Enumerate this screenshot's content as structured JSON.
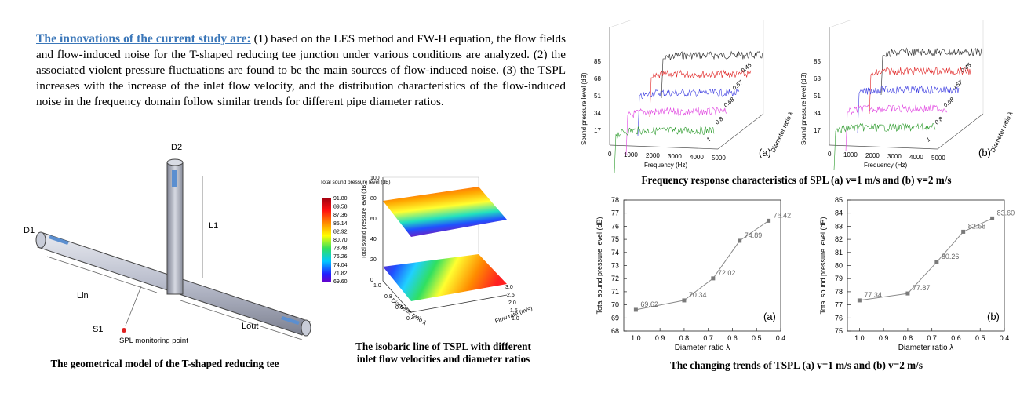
{
  "intro": {
    "lead": "The innovations of the current study are:",
    "body": " (1) based on the LES method and FW-H equation, the flow fields and flow-induced noise for the T-shaped reducing tee junction under various conditions are analyzed. (2) the associated violent pressure fluctuations are found to be the main sources of flow-induced noise. (3) the TSPL increases with the increase of the inlet flow velocity, and the distribution characteristics of the flow-induced noise in the frequency domain follow similar trends for different pipe diameter ratios."
  },
  "geometry": {
    "caption": "The geometrical model of the T-shaped reducing tee",
    "labels": {
      "d2": "D2",
      "d1": "D1",
      "l1": "L1",
      "lin": "Lin",
      "lout": "Lout",
      "s1": "S1",
      "monitor": "SPL monitoring point"
    }
  },
  "surface": {
    "caption": "The isobaric line of TSPL with different inlet flow velocities and diameter ratios",
    "colorbar_title": "Total sound pressure level  (dB)",
    "colorbar_values": [
      "91.80",
      "89.58",
      "87.36",
      "85.14",
      "82.92",
      "80.70",
      "78.48",
      "76.26",
      "74.04",
      "71.82",
      "69.60"
    ],
    "zlabel": "Total sound pressure level  (dB)",
    "zticks": [
      "100",
      "80",
      "60",
      "40",
      "20",
      "0"
    ],
    "xlabel": "Diameter ratio λ",
    "xticks": [
      "0.4",
      "0.6",
      "0.8",
      "1.0"
    ],
    "ylabel": "Flow rate (m/s)",
    "yticks": [
      "1.0",
      "1.5",
      "2.0",
      "2.5",
      "3.0"
    ]
  },
  "spectrum": {
    "caption": "Frequency response characteristics of SPL (a) v=1 m/s and (b) v=2 m/s",
    "panels": [
      {
        "tag": "(a)",
        "xlabel": "Frequency  (Hz)",
        "ylabel": "Sound pressure level  (dB)",
        "zlabel": "Diameter ratio λ",
        "xticks": [
          "0",
          "1000",
          "2000",
          "3000",
          "4000",
          "5000"
        ],
        "yticks": [
          "85",
          "68",
          "51",
          "34",
          "17"
        ],
        "ratios": [
          "0.45",
          "0.57",
          "0.68",
          "0.8",
          "1"
        ]
      },
      {
        "tag": "(b)",
        "xlabel": "Frequency  (Hz)",
        "ylabel": "Sound pressure level  (dB)",
        "zlabel": "Diameter ratio λ",
        "xticks": [
          "0",
          "1000",
          "2000",
          "3000",
          "4000",
          "5000"
        ],
        "yticks": [
          "85",
          "68",
          "51",
          "34",
          "17"
        ],
        "ratios": [
          "0.45",
          "0.57",
          "0.68",
          "0.8",
          "1"
        ]
      }
    ],
    "colors": [
      "#222222",
      "#e02020",
      "#3a3ae0",
      "#e040e0",
      "#2a9a2a"
    ]
  },
  "trends": {
    "caption": "The changing trends of TSPL (a) v=1 m/s and (b) v=2 m/s"
  },
  "chart_data": [
    {
      "type": "line",
      "tag": "(a)",
      "title": "",
      "x": [
        1.0,
        0.8,
        0.68,
        0.57,
        0.45
      ],
      "values": [
        69.62,
        70.34,
        72.02,
        74.89,
        76.42
      ],
      "labels": [
        "69.62",
        "70.34",
        "72.02",
        "74.89",
        "76.42"
      ],
      "xlabel": "Diameter ratio λ",
      "ylabel": "Total sound pressure level  (dB)",
      "xlim": [
        1.05,
        0.4
      ],
      "ylim": [
        68,
        78
      ],
      "xticks": [
        "1.0",
        "0.9",
        "0.8",
        "0.7",
        "0.6",
        "0.5",
        "0.4"
      ],
      "yticks": [
        "68",
        "69",
        "70",
        "71",
        "72",
        "73",
        "74",
        "75",
        "76",
        "77",
        "78"
      ],
      "grid": false
    },
    {
      "type": "line",
      "tag": "(b)",
      "title": "",
      "x": [
        1.0,
        0.8,
        0.68,
        0.57,
        0.45
      ],
      "values": [
        77.34,
        77.87,
        80.26,
        82.58,
        83.6
      ],
      "labels": [
        "77.34",
        "77.87",
        "80.26",
        "82.58",
        "83.60"
      ],
      "xlabel": "Diameter ratio λ",
      "ylabel": "Total sound pressure level  (dB)",
      "xlim": [
        1.05,
        0.4
      ],
      "ylim": [
        75,
        85
      ],
      "xticks": [
        "1.0",
        "0.9",
        "0.8",
        "0.7",
        "0.6",
        "0.5",
        "0.4"
      ],
      "yticks": [
        "75",
        "76",
        "77",
        "78",
        "79",
        "80",
        "81",
        "82",
        "83",
        "84",
        "85"
      ],
      "grid": false
    }
  ]
}
